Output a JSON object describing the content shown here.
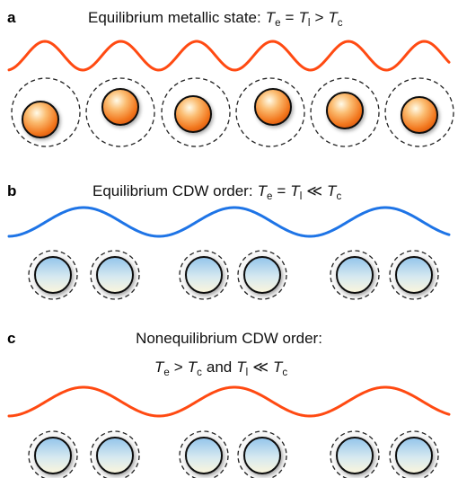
{
  "panels": [
    {
      "id": "a",
      "label": "a",
      "title_prefix": "Equilibrium metallic state",
      "title_colon": ":",
      "te_symbol": "T",
      "te_sub": "e",
      "eq": "=",
      "tl_symbol": "T",
      "tl_sub": "l",
      "rel": ">",
      "tc_symbol": "T",
      "tc_sub": "c",
      "wave_color": "#ff4a12",
      "ion_color": "#f47a22",
      "ions": 6
    },
    {
      "id": "b",
      "label": "b",
      "title_prefix": "Equilibrium CDW order",
      "title_colon": ":",
      "te_symbol": "T",
      "te_sub": "e",
      "eq": "=",
      "tl_symbol": "T",
      "tl_sub": "l",
      "rel": "≪",
      "tc_symbol": "T",
      "tc_sub": "c",
      "wave_color": "#1e74e6",
      "ion_color": "#9ccbec",
      "ions": 6
    },
    {
      "id": "c",
      "label": "c",
      "title_line1": "Nonequilibrium CDW order:",
      "te_symbol": "T",
      "te_sub": "e",
      "rel1": ">",
      "tc1_symbol": "T",
      "tc1_sub": "c",
      "and_word": "and",
      "tl_symbol": "T",
      "tl_sub": "l",
      "rel2": "≪",
      "tc2_symbol": "T",
      "tc2_sub": "c",
      "wave_color": "#ff4a12",
      "ion_color": "#9ccbec",
      "ions": 6
    }
  ]
}
